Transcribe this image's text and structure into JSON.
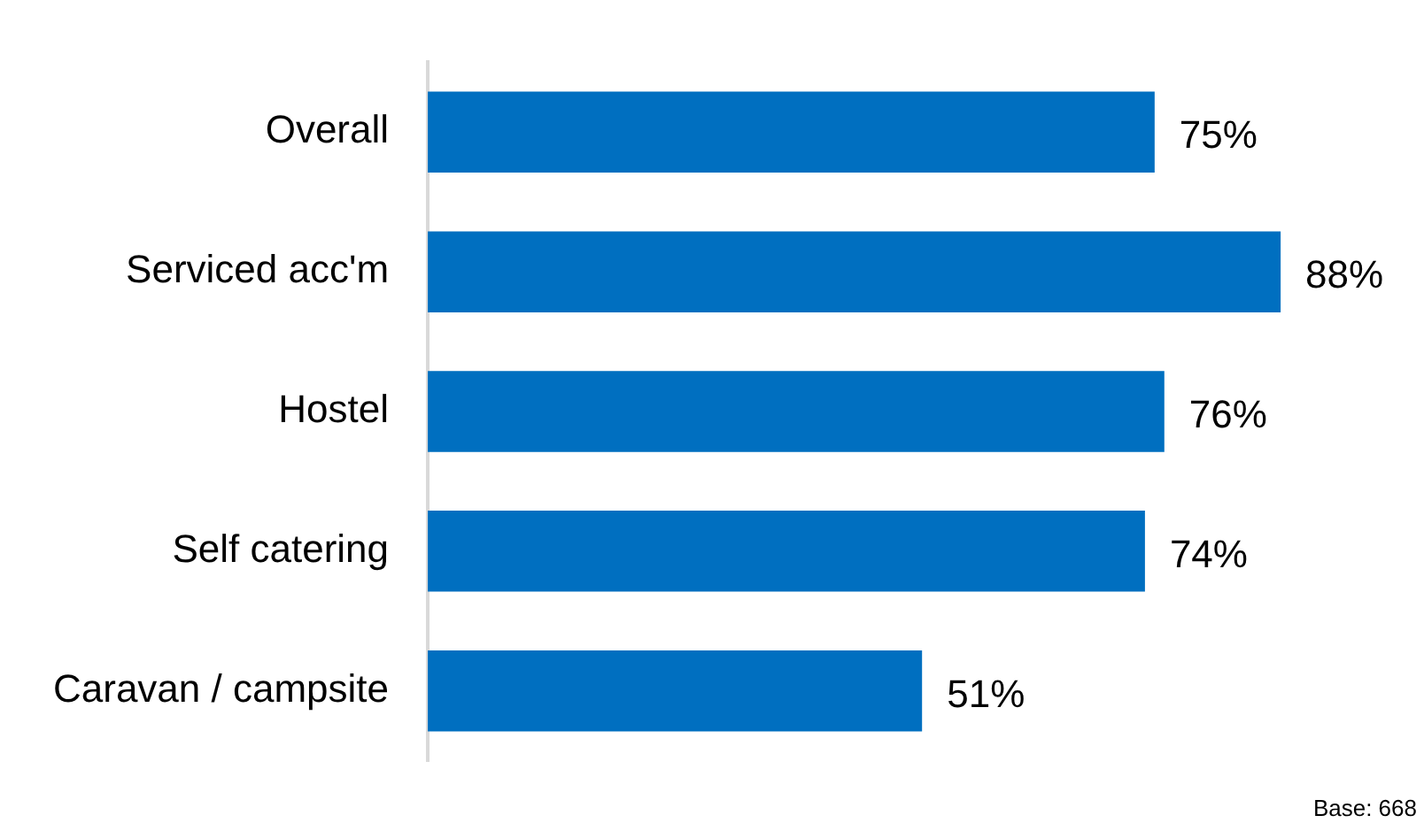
{
  "chart_data": {
    "type": "bar",
    "orientation": "horizontal",
    "categories": [
      "Overall",
      "Serviced acc'm",
      "Hostel",
      "Self catering",
      "Caravan / campsite"
    ],
    "values": [
      75,
      88,
      76,
      74,
      51
    ],
    "value_labels": [
      "75%",
      "88%",
      "76%",
      "74%",
      "51%"
    ],
    "color": "#006fc0",
    "tick_labels": "y",
    "grid": false,
    "legend": false,
    "annotations": [
      "Base: 668"
    ]
  }
}
